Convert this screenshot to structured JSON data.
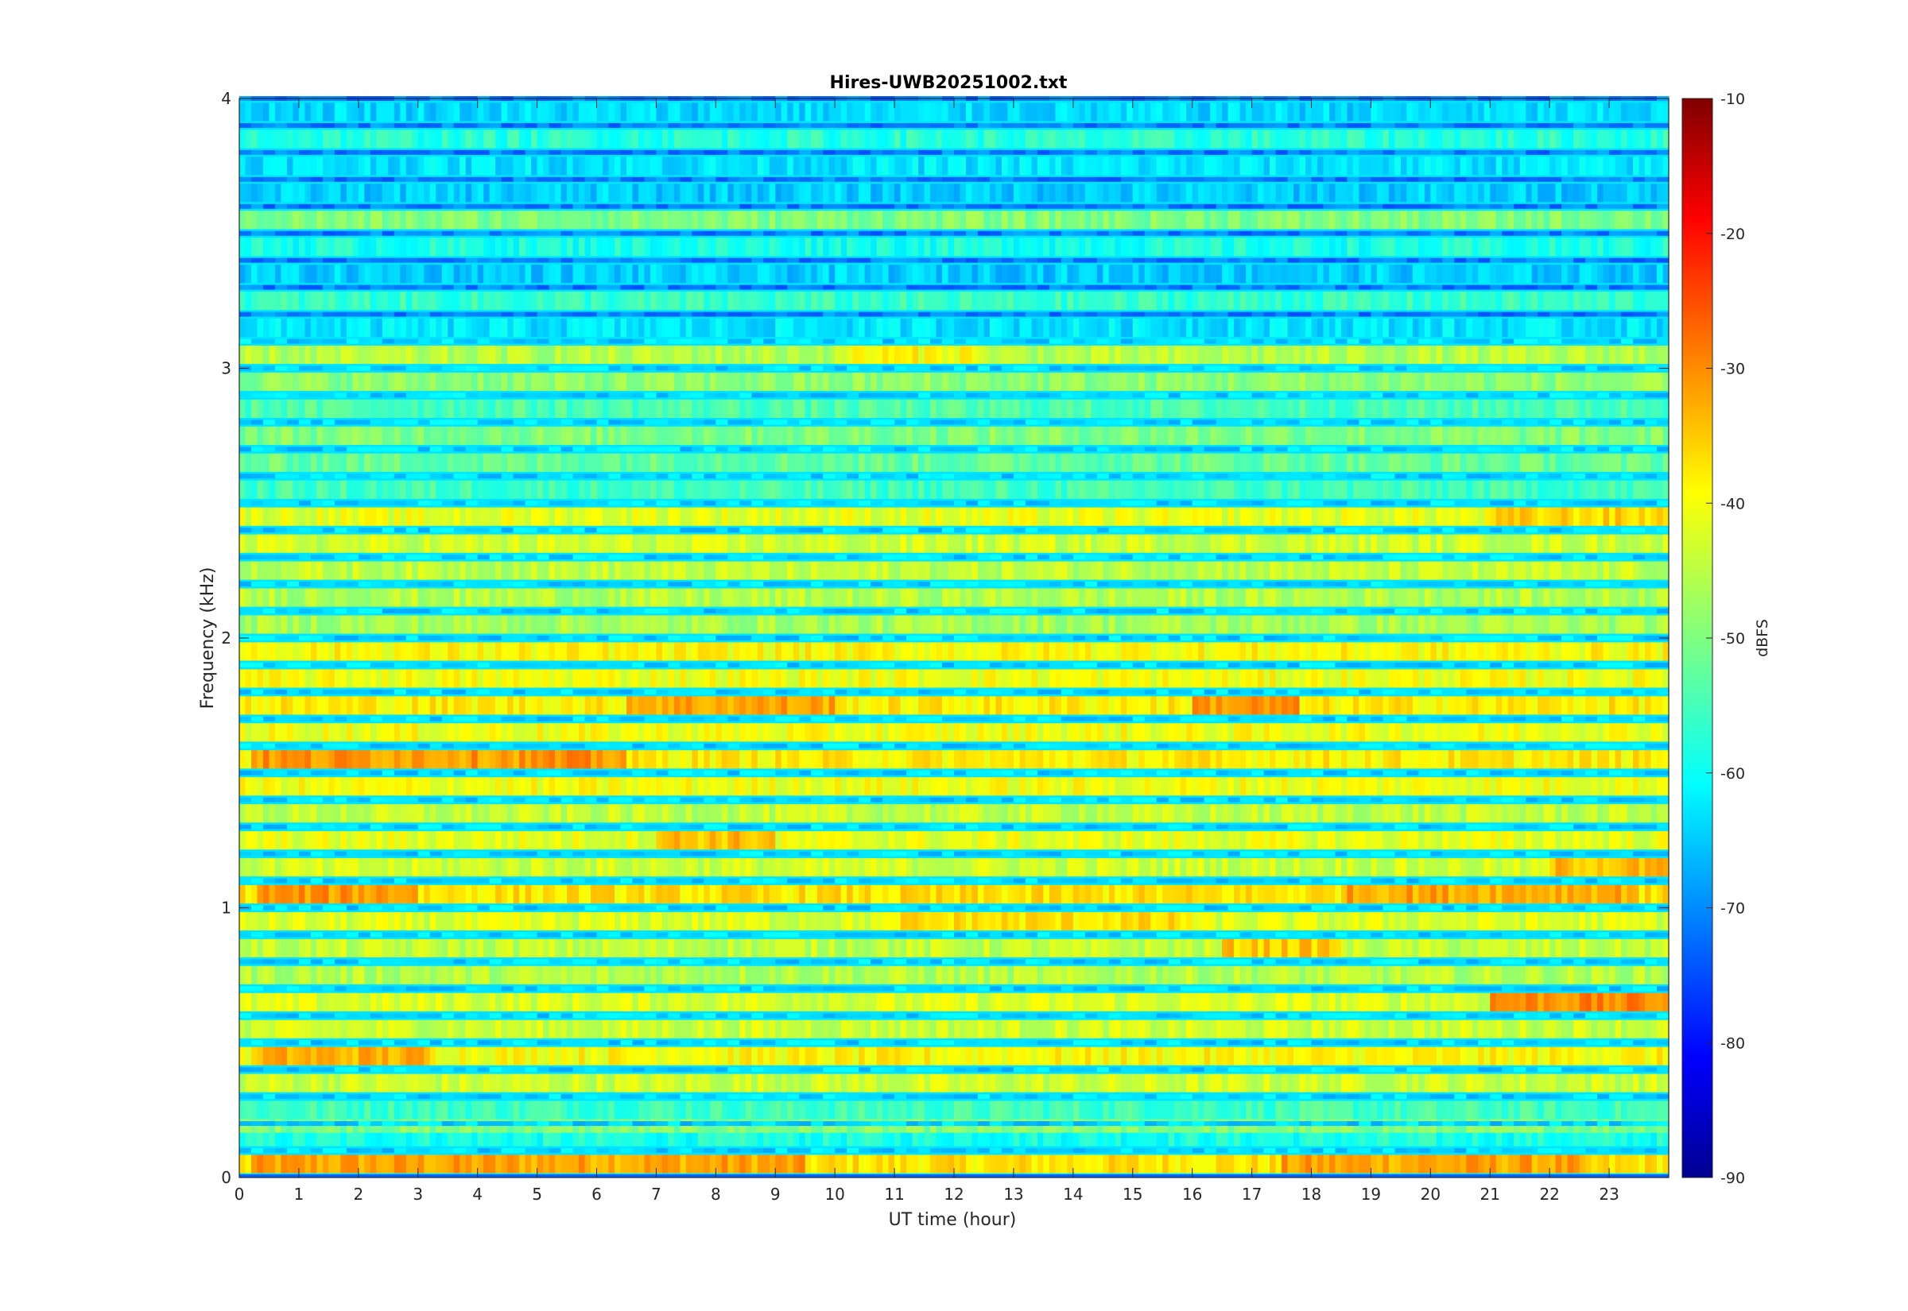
{
  "chart_data": {
    "type": "heatmap",
    "title": "Hires-UWB20251002.txt",
    "xlabel": "UT time (hour)",
    "ylabel": "Frequency (kHz)",
    "xlim": [
      0,
      24
    ],
    "ylim": [
      0,
      4
    ],
    "xticks": [
      "0",
      "1",
      "2",
      "3",
      "4",
      "5",
      "6",
      "7",
      "8",
      "9",
      "10",
      "11",
      "12",
      "13",
      "14",
      "15",
      "16",
      "17",
      "18",
      "19",
      "20",
      "21",
      "22",
      "23"
    ],
    "yticks": [
      "0",
      "1",
      "2",
      "3",
      "4"
    ],
    "colorbar": {
      "label": "dBFS",
      "range": [
        -90,
        -10
      ],
      "ticks": [
        "-10",
        "-20",
        "-30",
        "-40",
        "-50",
        "-60",
        "-70",
        "-80",
        "-90"
      ],
      "colormap": "jet"
    },
    "bands": [
      {
        "f": 0.05,
        "level": -38,
        "hot": [
          [
            0.2,
            9.5,
            -33
          ],
          [
            17.5,
            22.5,
            -33
          ]
        ]
      },
      {
        "f": 0.15,
        "level": -58
      },
      {
        "f": 0.2,
        "level": -50
      },
      {
        "f": 0.25,
        "level": -55
      },
      {
        "f": 0.35,
        "level": -44
      },
      {
        "f": 0.45,
        "level": -40,
        "hot": [
          [
            0.3,
            3.2,
            -34
          ]
        ]
      },
      {
        "f": 0.55,
        "level": -44
      },
      {
        "f": 0.65,
        "level": -43,
        "hot": [
          [
            21.0,
            24.0,
            -31
          ]
        ]
      },
      {
        "f": 0.75,
        "level": -46
      },
      {
        "f": 0.85,
        "level": -45,
        "hot": [
          [
            16.5,
            18.5,
            -36
          ]
        ]
      },
      {
        "f": 0.95,
        "level": -43,
        "hot": [
          [
            11.0,
            16.0,
            -38
          ]
        ]
      },
      {
        "f": 1.05,
        "level": -38,
        "hot": [
          [
            0.3,
            3.0,
            -32
          ],
          [
            18.5,
            23.5,
            -33
          ]
        ]
      },
      {
        "f": 1.15,
        "level": -44,
        "hot": [
          [
            22.0,
            24.0,
            -35
          ]
        ]
      },
      {
        "f": 1.25,
        "level": -42,
        "hot": [
          [
            7.0,
            9.0,
            -35
          ]
        ]
      },
      {
        "f": 1.35,
        "level": -45
      },
      {
        "f": 1.45,
        "level": -41
      },
      {
        "f": 1.55,
        "level": -39,
        "hot": [
          [
            0.2,
            6.5,
            -32
          ]
        ]
      },
      {
        "f": 1.65,
        "level": -41
      },
      {
        "f": 1.75,
        "level": -39,
        "hot": [
          [
            6.5,
            10.0,
            -33
          ],
          [
            16.0,
            17.8,
            -32
          ]
        ]
      },
      {
        "f": 1.85,
        "level": -41
      },
      {
        "f": 1.95,
        "level": -40
      },
      {
        "f": 2.05,
        "level": -47
      },
      {
        "f": 2.15,
        "level": -46
      },
      {
        "f": 2.25,
        "level": -45
      },
      {
        "f": 2.35,
        "level": -44
      },
      {
        "f": 2.45,
        "level": -42,
        "hot": [
          [
            21.0,
            24.0,
            -37
          ]
        ]
      },
      {
        "f": 2.55,
        "level": -55
      },
      {
        "f": 2.65,
        "level": -52
      },
      {
        "f": 2.75,
        "level": -50
      },
      {
        "f": 2.85,
        "level": -54
      },
      {
        "f": 2.95,
        "level": -49
      },
      {
        "f": 3.05,
        "level": -46,
        "hot": [
          [
            10.2,
            12.5,
            -40
          ]
        ]
      },
      {
        "f": 3.15,
        "level": -62
      },
      {
        "f": 3.25,
        "level": -56
      },
      {
        "f": 3.35,
        "level": -64
      },
      {
        "f": 3.45,
        "level": -58
      },
      {
        "f": 3.55,
        "level": -50
      },
      {
        "f": 3.65,
        "level": -64
      },
      {
        "f": 3.75,
        "level": -62
      },
      {
        "f": 3.85,
        "level": -57
      },
      {
        "f": 3.95,
        "level": -63
      }
    ]
  }
}
